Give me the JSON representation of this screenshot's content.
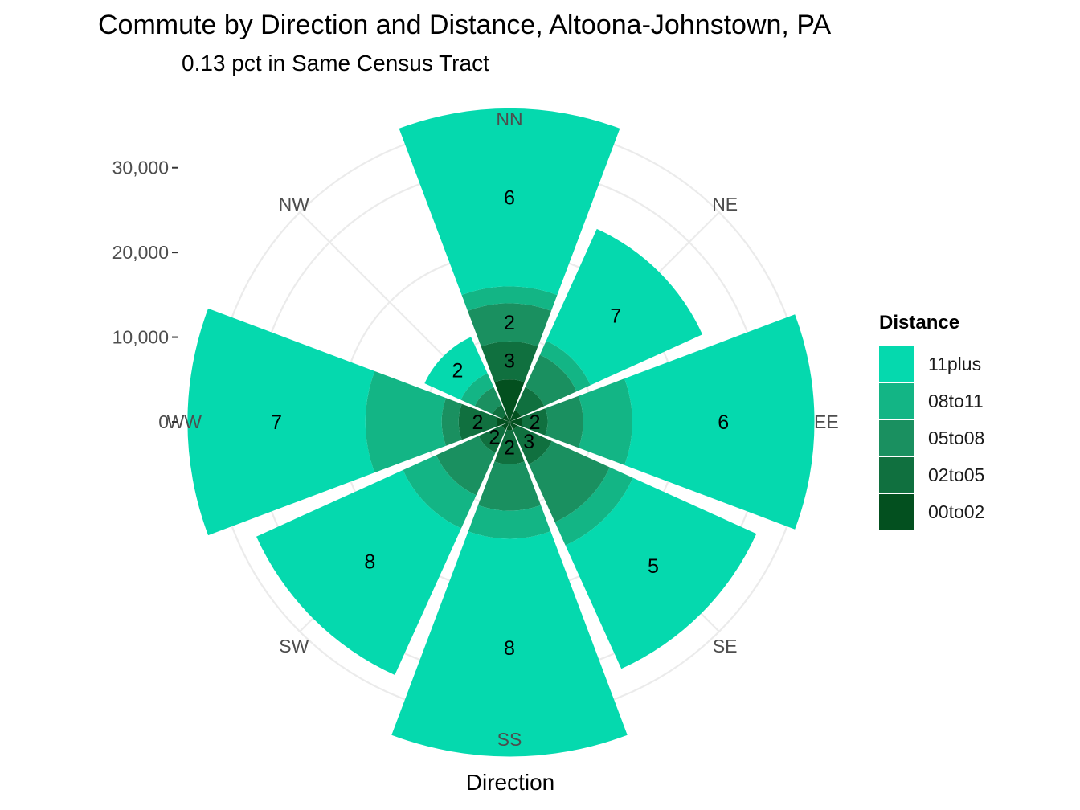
{
  "chart_data": {
    "type": "polar-stacked-bar",
    "title": "Commute by Direction and Distance, Altoona-Johnstown, PA",
    "subtitle": "0.13 pct in Same Census Tract",
    "xlabel": "Direction",
    "ylabel": "",
    "ylim": [
      0,
      35000
    ],
    "y_ticks": [
      0,
      10000,
      20000,
      30000
    ],
    "y_tick_labels": [
      "0",
      "10,000",
      "20,000",
      "30,000"
    ],
    "grid": true,
    "legend_title": "Distance",
    "legend_position": "right",
    "categories": [
      "NN",
      "NE",
      "EE",
      "SE",
      "SS",
      "SW",
      "WW",
      "NW"
    ],
    "series": [
      {
        "name": "00to02",
        "color": "#03501f",
        "values": [
          5000,
          1500,
          1500,
          1000,
          1000,
          1000,
          1500,
          900
        ]
      },
      {
        "name": "02to05",
        "color": "#10703f",
        "values": [
          4500,
          3000,
          3000,
          4500,
          4000,
          3000,
          4500,
          1300
        ]
      },
      {
        "name": "05to08",
        "color": "#1a9060",
        "values": [
          4500,
          4200,
          4200,
          7500,
          5500,
          5500,
          2000,
          2300
        ]
      },
      {
        "name": "08to11",
        "color": "#13b585",
        "values": [
          2000,
          1800,
          5800,
          3000,
          3300,
          4300,
          9000,
          1800
        ]
      },
      {
        "name": "11plus",
        "color": "#05d9ae",
        "values": [
          21000,
          14500,
          21500,
          16000,
          25700,
          19000,
          21000,
          4700
        ]
      }
    ],
    "bar_labels": [
      {
        "category": "NN",
        "series": "11plus",
        "text": "6"
      },
      {
        "category": "NN",
        "series": "05to08",
        "text": "2"
      },
      {
        "category": "NN",
        "series": "02to05",
        "text": "3"
      },
      {
        "category": "NE",
        "series": "11plus",
        "text": "7"
      },
      {
        "category": "EE",
        "series": "11plus",
        "text": "6"
      },
      {
        "category": "EE",
        "series": "02to05",
        "text": "2"
      },
      {
        "category": "SE",
        "series": "11plus",
        "text": "5"
      },
      {
        "category": "SE",
        "series": "02to05",
        "text": "3"
      },
      {
        "category": "SS",
        "series": "11plus",
        "text": "8"
      },
      {
        "category": "SS",
        "series": "02to05",
        "text": "2"
      },
      {
        "category": "SW",
        "series": "11plus",
        "text": "8"
      },
      {
        "category": "SW",
        "series": "02to05",
        "text": "2"
      },
      {
        "category": "WW",
        "series": "11plus",
        "text": "7"
      },
      {
        "category": "WW",
        "series": "02to05",
        "text": "2"
      },
      {
        "category": "NW",
        "series": "11plus",
        "text": "2"
      }
    ],
    "legend_order": [
      "11plus",
      "08to11",
      "05to08",
      "02to05",
      "00to02"
    ]
  }
}
